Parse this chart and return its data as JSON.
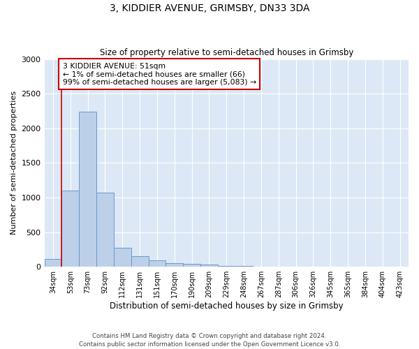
{
  "title": "3, KIDDIER AVENUE, GRIMSBY, DN33 3DA",
  "subtitle": "Size of property relative to semi-detached houses in Grimsby",
  "xlabel": "Distribution of semi-detached houses by size in Grimsby",
  "ylabel": "Number of semi-detached properties",
  "footnote": "Contains HM Land Registry data © Crown copyright and database right 2024.\nContains public sector information licensed under the Open Government Licence v3.0.",
  "annotation_line1": "3 KIDDIER AVENUE: 51sqm",
  "annotation_line2": "← 1% of semi-detached houses are smaller (66)",
  "annotation_line3": "99% of semi-detached houses are larger (5,083) →",
  "bar_color": "#bdd0e9",
  "bar_edge_color": "#6699cc",
  "highlight_line_color": "#cc0000",
  "annotation_box_edgecolor": "#cc0000",
  "categories": [
    "34sqm",
    "53sqm",
    "73sqm",
    "92sqm",
    "112sqm",
    "131sqm",
    "151sqm",
    "170sqm",
    "190sqm",
    "209sqm",
    "229sqm",
    "248sqm",
    "267sqm",
    "287sqm",
    "306sqm",
    "326sqm",
    "345sqm",
    "365sqm",
    "384sqm",
    "404sqm",
    "423sqm"
  ],
  "values": [
    115,
    1100,
    2240,
    1070,
    275,
    155,
    90,
    50,
    45,
    35,
    10,
    8,
    3,
    0,
    0,
    0,
    0,
    0,
    0,
    0,
    0
  ],
  "ylim": [
    0,
    3000
  ],
  "yticks": [
    0,
    500,
    1000,
    1500,
    2000,
    2500,
    3000
  ],
  "highlight_bar_index": 0,
  "red_line_x": 0.5,
  "figsize": [
    6.0,
    5.0
  ],
  "dpi": 100
}
